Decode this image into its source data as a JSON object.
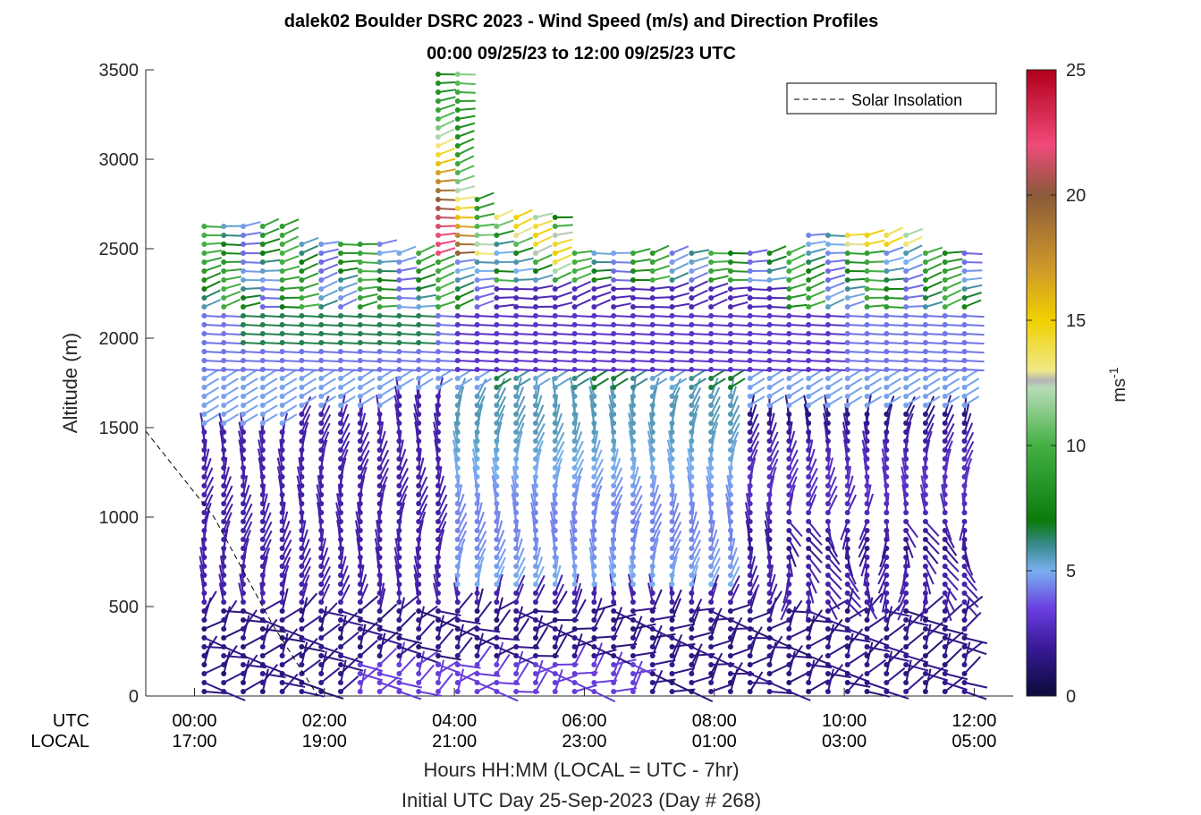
{
  "chart_data": {
    "type": "wind-barb-profile",
    "title": "dalek02 Boulder DSRC 2023 - Wind Speed (m/s) and Direction Profiles",
    "subtitle": "00:00 09/25/23 to 12:00 09/25/23  UTC",
    "ylabel": "Altitude (m)",
    "xlabel": "Hours HH:MM  (LOCAL = UTC - 7hr)",
    "footer": "Initial UTC Day 25-Sep-2023 (Day # 268)",
    "ylim": [
      0,
      3500
    ],
    "xlim_hours_utc": [
      -0.75,
      12.6
    ],
    "y_ticks": [
      0,
      500,
      1000,
      1500,
      2000,
      2500,
      3000,
      3500
    ],
    "x_row_labels": {
      "utc": "UTC",
      "local": "LOCAL"
    },
    "x_ticks": [
      {
        "hour": 0,
        "utc": "00:00",
        "local": "17:00"
      },
      {
        "hour": 2,
        "utc": "02:00",
        "local": "19:00"
      },
      {
        "hour": 4,
        "utc": "04:00",
        "local": "21:00"
      },
      {
        "hour": 6,
        "utc": "06:00",
        "local": "23:00"
      },
      {
        "hour": 8,
        "utc": "08:00",
        "local": "01:00"
      },
      {
        "hour": 10,
        "utc": "10:00",
        "local": "03:00"
      },
      {
        "hour": 12,
        "utc": "12:00",
        "local": "05:00"
      }
    ],
    "legend": {
      "entry": "Solar Insolation",
      "style": "dashed",
      "placement": "top-right"
    },
    "solar_insolation_line": {
      "x_hours": [
        -0.75,
        0.3,
        1.2,
        1.9
      ],
      "y_m": [
        1480,
        1000,
        400,
        0
      ]
    },
    "colorbar": {
      "label": "ms",
      "label_superscript": "-1",
      "range": [
        0,
        25
      ],
      "ticks": [
        0,
        5,
        10,
        15,
        20,
        25
      ],
      "stops": [
        {
          "v": 0,
          "c": "#0b0b3a"
        },
        {
          "v": 2,
          "c": "#3a1a9a"
        },
        {
          "v": 3.5,
          "c": "#6a3fe0"
        },
        {
          "v": 5,
          "c": "#7ab0f0"
        },
        {
          "v": 6,
          "c": "#3a8a90"
        },
        {
          "v": 7,
          "c": "#0b7a0b"
        },
        {
          "v": 10,
          "c": "#44b044"
        },
        {
          "v": 12.3,
          "c": "#b8dcb8"
        },
        {
          "v": 12.6,
          "c": "#b4b4b4"
        },
        {
          "v": 13,
          "c": "#f0e888"
        },
        {
          "v": 15,
          "c": "#f0d000"
        },
        {
          "v": 17,
          "c": "#d09a2a"
        },
        {
          "v": 20,
          "c": "#8a5a3a"
        },
        {
          "v": 22,
          "c": "#f04a7a"
        },
        {
          "v": 25,
          "c": "#b0001a"
        }
      ]
    },
    "profile_times_hours_utc": [
      0.15,
      0.45,
      0.75,
      1.05,
      1.35,
      1.65,
      1.95,
      2.25,
      2.55,
      2.85,
      3.15,
      3.45,
      3.75,
      4.05,
      4.35,
      4.65,
      4.95,
      5.25,
      5.55,
      5.85,
      6.15,
      6.45,
      6.75,
      7.05,
      7.35,
      7.65,
      7.95,
      8.25,
      8.55,
      8.85,
      9.15,
      9.45,
      9.75,
      10.05,
      10.35,
      10.65,
      10.95,
      11.25,
      11.55,
      11.85
    ]
  }
}
